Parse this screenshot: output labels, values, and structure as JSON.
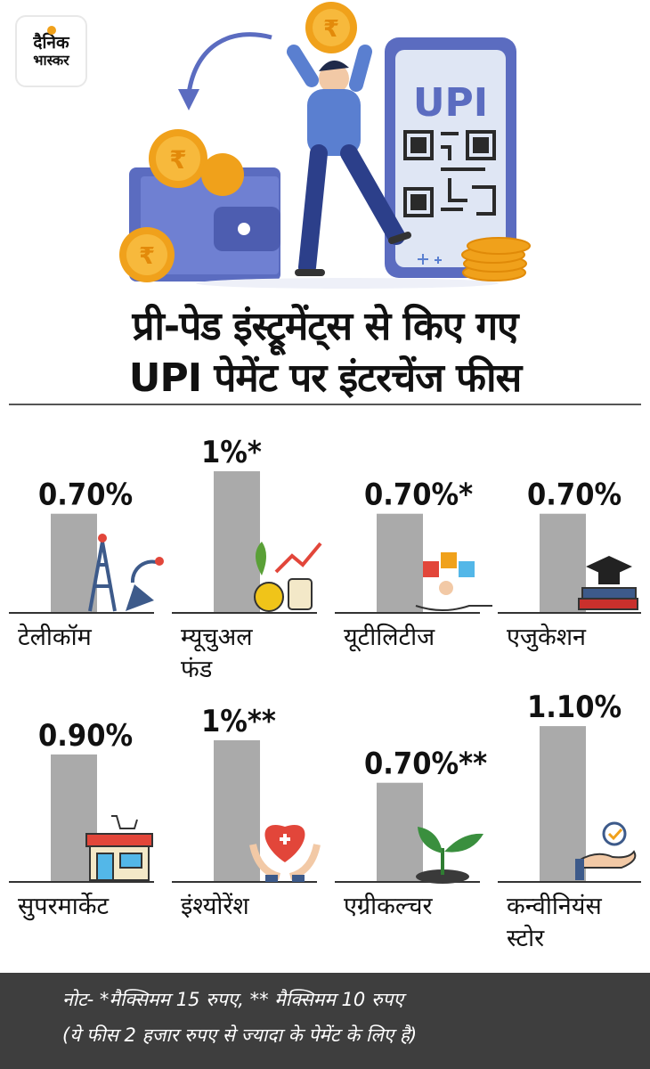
{
  "brand": {
    "logo_line1": "दैनिक",
    "logo_line2": "भास्कर"
  },
  "hero": {
    "phone_label": "UPI",
    "coin_symbol": "₹"
  },
  "title": {
    "line1": "प्री-पेड इंस्ट्रूमेंट्स से किए गए",
    "line2": "UPI पेमेंट पर इंटरचेंज फीस"
  },
  "chart_data": {
    "type": "bar",
    "categories": [
      "टेलीकॉम",
      "म्यूचुअल फंड",
      "यूटीलिटीज",
      "एजुकेशन",
      "सुपरमार्केट",
      "इंश्योरेंश",
      "एग्रीकल्चर",
      "कन्वीनियंस स्टोर"
    ],
    "category_lines": [
      [
        "टेलीकॉम"
      ],
      [
        "म्यूचुअल",
        "फंड"
      ],
      [
        "यूटीलिटीज"
      ],
      [
        "एजुकेशन"
      ],
      [
        "सुपरमार्केट"
      ],
      [
        "इंश्योरेंश"
      ],
      [
        "एग्रीकल्चर"
      ],
      [
        "कन्वीनियंस",
        "स्टोर"
      ]
    ],
    "values": [
      0.7,
      1.0,
      0.7,
      0.7,
      0.9,
      1.0,
      0.7,
      1.1
    ],
    "value_labels": [
      "0.70%",
      "1%*",
      "0.70%*",
      "0.70%",
      "0.90%",
      "1%**",
      "0.70%**",
      "1.10%"
    ],
    "icons": [
      "tower-icon",
      "investment-icon",
      "utilities-icon",
      "education-icon",
      "shop-icon",
      "insurance-icon",
      "plant-icon",
      "hand-check-icon"
    ],
    "layout": "2 rows of 4 bar panels",
    "unit": "%",
    "bar_color": "#aaaaaa"
  },
  "note": {
    "line1": "नोट- *मैक्सिमम 15 रुपए,  ** मैक्सिमम 10 रुपए",
    "line2": "(ये फीस 2 हजार रुपए से ज्यादा के पेमेंट के लिए है)"
  },
  "colors": {
    "coin": "#f0a11b",
    "wallet": "#5b6cc0",
    "person_shirt": "#5a7fd0",
    "note_bg": "#3e3e3e"
  }
}
